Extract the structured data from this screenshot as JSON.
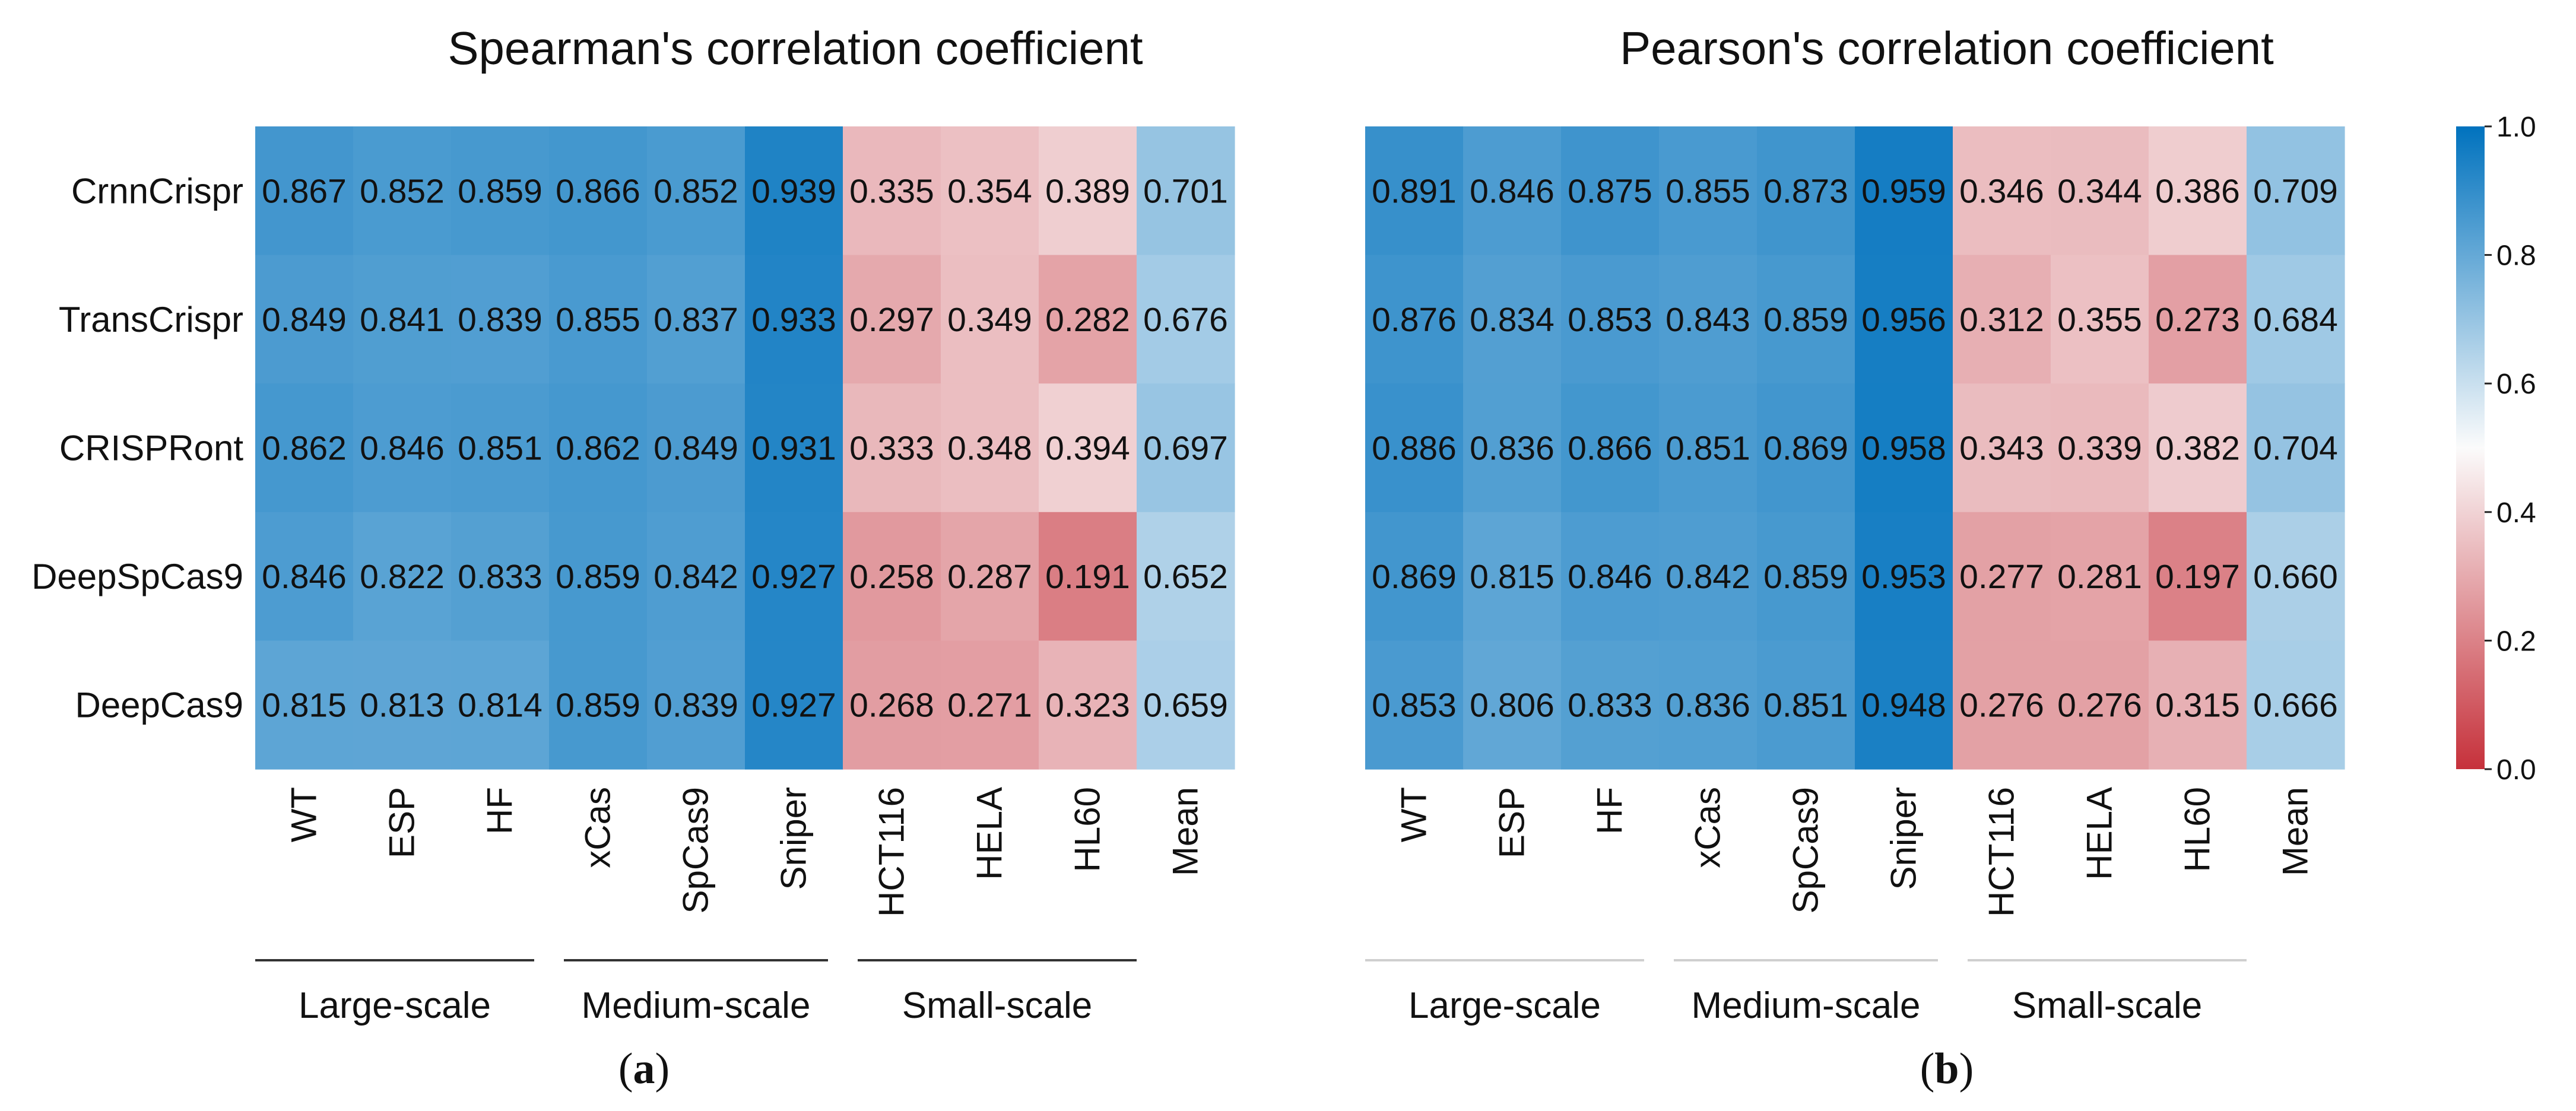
{
  "chart_data": [
    {
      "type": "heatmap",
      "title": "Spearman's correlation coefficient",
      "panel_label": "(a)",
      "rows": [
        "CrnnCrispr",
        "TransCrispr",
        "CRISPRont",
        "DeepSpCas9",
        "DeepCas9"
      ],
      "columns": [
        "WT",
        "ESP",
        "HF",
        "xCas",
        "SpCas9",
        "Sniper",
        "HCT116",
        "HELA",
        "HL60",
        "Mean"
      ],
      "groups": [
        {
          "label": "Large-scale",
          "columns": [
            "WT",
            "ESP",
            "HF"
          ]
        },
        {
          "label": "Medium-scale",
          "columns": [
            "xCas",
            "SpCas9",
            "Sniper"
          ]
        },
        {
          "label": "Small-scale",
          "columns": [
            "HCT116",
            "HELA",
            "HL60"
          ]
        }
      ],
      "values": [
        [
          0.867,
          0.852,
          0.859,
          0.866,
          0.852,
          0.939,
          0.335,
          0.354,
          0.389,
          0.701
        ],
        [
          0.849,
          0.841,
          0.839,
          0.855,
          0.837,
          0.933,
          0.297,
          0.349,
          0.282,
          0.676
        ],
        [
          0.862,
          0.846,
          0.851,
          0.862,
          0.849,
          0.931,
          0.333,
          0.348,
          0.394,
          0.697
        ],
        [
          0.846,
          0.822,
          0.833,
          0.859,
          0.842,
          0.927,
          0.258,
          0.287,
          0.191,
          0.652
        ],
        [
          0.815,
          0.813,
          0.814,
          0.859,
          0.839,
          0.927,
          0.268,
          0.271,
          0.323,
          0.659
        ]
      ],
      "labels": [
        [
          "0.867",
          "0.852",
          "0.859",
          "0.866",
          "0.852",
          "0.939",
          "0.335",
          "0.354",
          "0.389",
          "0.701"
        ],
        [
          "0.849",
          "0.841",
          "0.839",
          "0.855",
          "0.837",
          "0.933",
          "0.297",
          "0.349",
          "0.282",
          "0.676"
        ],
        [
          "0.862",
          "0.846",
          "0.851",
          "0.862",
          "0.849",
          "0.931",
          "0.333",
          "0.348",
          "0.394",
          "0.697"
        ],
        [
          "0.846",
          "0.822",
          "0.833",
          "0.859",
          "0.842",
          "0.927",
          "0.258",
          "0.287",
          "0.191",
          "0.652"
        ],
        [
          "0.815",
          "0.813",
          "0.814",
          "0.859",
          "0.839",
          "0.927",
          "0.268",
          "0.271",
          "0.323",
          "0.659"
        ]
      ],
      "vmin": 0.0,
      "vmax": 1.0
    },
    {
      "type": "heatmap",
      "title": "Pearson's correlation coefficient",
      "panel_label": "(b)",
      "rows": [
        "CrnnCrispr",
        "TransCrispr",
        "CRISPRont",
        "DeepSpCas9",
        "DeepCas9"
      ],
      "columns": [
        "WT",
        "ESP",
        "HF",
        "xCas",
        "SpCas9",
        "Sniper",
        "HCT116",
        "HELA",
        "HL60",
        "Mean"
      ],
      "groups": [
        {
          "label": "Large-scale",
          "columns": [
            "WT",
            "ESP",
            "HF"
          ]
        },
        {
          "label": "Medium-scale",
          "columns": [
            "xCas",
            "SpCas9",
            "Sniper"
          ]
        },
        {
          "label": "Small-scale",
          "columns": [
            "HCT116",
            "HELA",
            "HL60"
          ]
        }
      ],
      "values": [
        [
          0.891,
          0.846,
          0.875,
          0.855,
          0.873,
          0.959,
          0.346,
          0.344,
          0.386,
          0.709
        ],
        [
          0.876,
          0.834,
          0.853,
          0.843,
          0.859,
          0.956,
          0.312,
          0.355,
          0.273,
          0.684
        ],
        [
          0.886,
          0.836,
          0.866,
          0.851,
          0.869,
          0.958,
          0.343,
          0.339,
          0.382,
          0.704
        ],
        [
          0.869,
          0.815,
          0.846,
          0.842,
          0.859,
          0.953,
          0.277,
          0.281,
          0.197,
          0.66
        ],
        [
          0.853,
          0.806,
          0.833,
          0.836,
          0.851,
          0.948,
          0.276,
          0.276,
          0.315,
          0.666
        ]
      ],
      "labels": [
        [
          "0.891",
          "0.846",
          "0.875",
          "0.855",
          "0.873",
          "0.959",
          "0.346",
          "0.344",
          "0.386",
          "0.709"
        ],
        [
          "0.876",
          "0.834",
          "0.853",
          "0.843",
          "0.859",
          "0.956",
          "0.312",
          "0.355",
          "0.273",
          "0.684"
        ],
        [
          "0.886",
          "0.836",
          "0.866",
          "0.851",
          "0.869",
          "0.958",
          "0.343",
          "0.339",
          "0.382",
          "0.704"
        ],
        [
          "0.869",
          "0.815",
          "0.846",
          "0.842",
          "0.859",
          "0.953",
          "0.277",
          "0.281",
          "0.197",
          "0.660"
        ],
        [
          "0.853",
          "0.806",
          "0.833",
          "0.836",
          "0.851",
          "0.948",
          "0.276",
          "0.276",
          "0.315",
          "0.666"
        ]
      ],
      "vmin": 0.0,
      "vmax": 1.0
    }
  ],
  "colorbar": {
    "ticks": [
      "0.0",
      "0.2",
      "0.4",
      "0.6",
      "0.8",
      "1.0"
    ],
    "tick_values": [
      0.0,
      0.2,
      0.4,
      0.6,
      0.8,
      1.0
    ],
    "colormap": [
      "#c6313b",
      "#fbfbfb",
      "#0072be"
    ],
    "vmin": 0.0,
    "vmax": 1.0
  }
}
